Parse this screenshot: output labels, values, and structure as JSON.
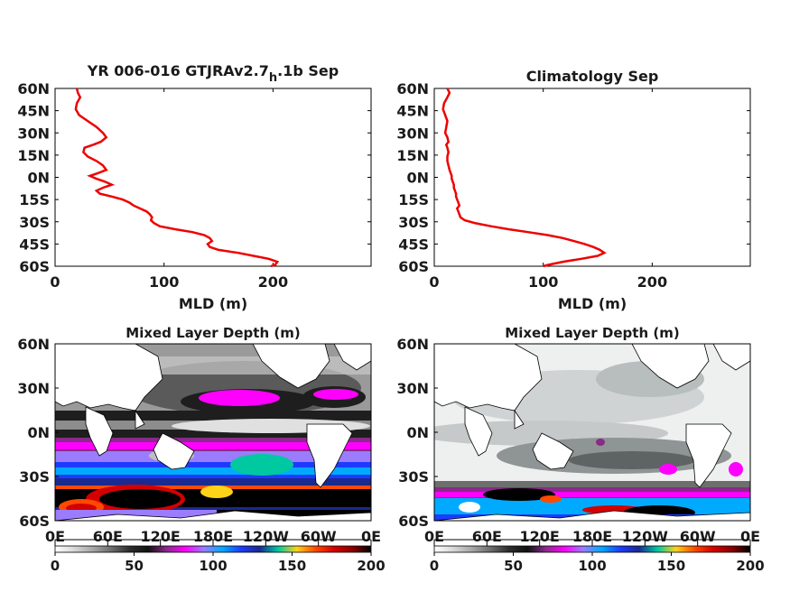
{
  "chart_data": [
    {
      "type": "line",
      "title": "YR 006-016 GTJRAv2.7",
      "title_sub": "h",
      "title_suffix": ".1b Sep",
      "xlabel": "MLD (m)",
      "ylabel": "",
      "xlim": [
        0,
        290
      ],
      "ylim": [
        -60,
        60
      ],
      "xticks": [
        "0",
        "100",
        "200"
      ],
      "xtick_values": [
        0,
        100,
        200
      ],
      "yticks": [
        "60N",
        "45N",
        "30N",
        "15N",
        "0N",
        "15S",
        "30S",
        "45S",
        "60S"
      ],
      "ytick_values": [
        60,
        45,
        30,
        15,
        0,
        -15,
        -30,
        -45,
        -60
      ],
      "line_color": "#ee0000",
      "series": [
        {
          "x": [
            20,
            21,
            23,
            20,
            19,
            22,
            30,
            38,
            44,
            47,
            42,
            35,
            27,
            26,
            30,
            38,
            44,
            47,
            40,
            32,
            38,
            46,
            52,
            44,
            38,
            41,
            52,
            62,
            68,
            72,
            78,
            84,
            87,
            89,
            88,
            91,
            96,
            110,
            126,
            137,
            142,
            144,
            140,
            142,
            150,
            168,
            182,
            196,
            204,
            202,
            198
          ],
          "y": [
            60,
            57,
            54,
            50,
            46,
            42,
            38,
            34,
            30,
            27,
            24,
            22,
            20,
            17,
            14,
            11,
            8,
            5,
            3,
            1,
            -1,
            -3,
            -5,
            -7,
            -9,
            -11,
            -13,
            -15,
            -17,
            -19,
            -21,
            -23,
            -25,
            -27,
            -29,
            -31,
            -33,
            -35,
            -37,
            -39,
            -41,
            -43,
            -45,
            -47,
            -49,
            -51,
            -53,
            -55,
            -57,
            -59,
            -60
          ]
        }
      ]
    },
    {
      "type": "line",
      "title": "Climatology Sep",
      "xlabel": "MLD (m)",
      "ylabel": "",
      "xlim": [
        0,
        290
      ],
      "ylim": [
        -60,
        60
      ],
      "xticks": [
        "0",
        "100",
        "200"
      ],
      "xtick_values": [
        0,
        100,
        200
      ],
      "yticks": [
        "60N",
        "45N",
        "30N",
        "15N",
        "0N",
        "15S",
        "30S",
        "45S",
        "60S"
      ],
      "ytick_values": [
        60,
        45,
        30,
        15,
        0,
        -15,
        -30,
        -45,
        -60
      ],
      "line_color": "#ee0000",
      "series": [
        {
          "x": [
            12,
            14,
            12,
            9,
            8,
            10,
            12,
            11,
            10,
            12,
            13,
            11,
            12,
            13,
            12,
            12,
            13,
            14,
            15,
            16,
            16,
            17,
            18,
            18,
            19,
            20,
            20,
            21,
            22,
            23,
            21,
            22,
            23,
            24,
            28,
            38,
            52,
            68,
            86,
            104,
            118,
            128,
            138,
            146,
            152,
            156,
            150,
            135,
            118,
            105,
            100
          ],
          "y": [
            60,
            57,
            54,
            50,
            46,
            42,
            38,
            34,
            30,
            27,
            24,
            22,
            20,
            17,
            14,
            11,
            8,
            5,
            3,
            1,
            -1,
            -3,
            -5,
            -7,
            -9,
            -11,
            -13,
            -15,
            -17,
            -19,
            -21,
            -23,
            -25,
            -27,
            -29,
            -31,
            -33,
            -35,
            -37,
            -39,
            -41,
            -43,
            -45,
            -47,
            -49,
            -51,
            -53,
            -55,
            -57,
            -59,
            -60
          ]
        }
      ]
    },
    {
      "type": "heatmap",
      "title": "Mixed Layer Depth (m)",
      "xlim": [
        0,
        360
      ],
      "ylim": [
        -60,
        60
      ],
      "xticks": [
        "0E",
        "60E",
        "120E",
        "180E",
        "120W",
        "60W",
        "0E"
      ],
      "yticks": [
        "60N",
        "30N",
        "0N",
        "30S",
        "60S"
      ],
      "colorbar_ticks": [
        "0",
        "50",
        "100",
        "150",
        "200"
      ],
      "colorbar_range": [
        0,
        200
      ],
      "colormap": [
        "#ffffff",
        "#d9d9d9",
        "#a8a8a8",
        "#6e6e6e",
        "#2e2e2e",
        "#111111",
        "#8a2a8a",
        "#ff00ff",
        "#9b7cff",
        "#00aaff",
        "#1d3bff",
        "#1a2a8f",
        "#00c8a0",
        "#ffd21a",
        "#ff4a00",
        "#d40000",
        "#8a0000",
        "#000000"
      ],
      "land_color": "#ffffff"
    },
    {
      "type": "heatmap",
      "title": "Mixed Layer Depth (m)",
      "xlim": [
        0,
        360
      ],
      "ylim": [
        -60,
        60
      ],
      "xticks": [
        "0E",
        "60E",
        "120E",
        "180E",
        "120W",
        "60W",
        "0E"
      ],
      "yticks": [
        "60N",
        "30N",
        "0N",
        "30S",
        "60S"
      ],
      "colorbar_ticks": [
        "0",
        "50",
        "100",
        "150",
        "200"
      ],
      "colorbar_range": [
        0,
        200
      ],
      "colormap": [
        "#ffffff",
        "#d9d9d9",
        "#a8a8a8",
        "#6e6e6e",
        "#2e2e2e",
        "#111111",
        "#8a2a8a",
        "#ff00ff",
        "#9b7cff",
        "#00aaff",
        "#1d3bff",
        "#1a2a8f",
        "#00c8a0",
        "#ffd21a",
        "#ff4a00",
        "#d40000",
        "#8a0000",
        "#000000"
      ],
      "land_color": "#ffffff"
    }
  ]
}
